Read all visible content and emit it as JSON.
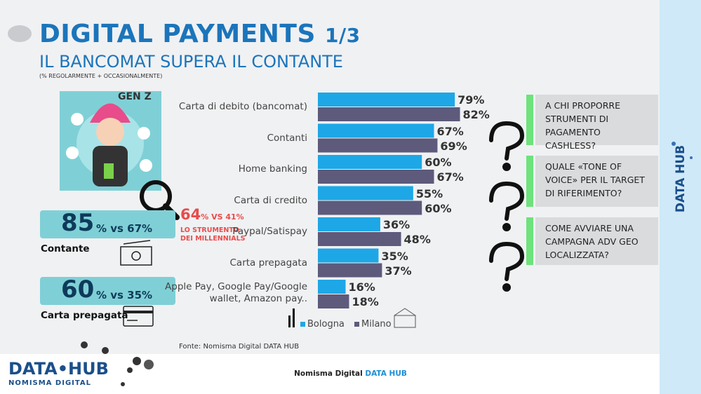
{
  "header": {
    "title": "DIGITAL PAYMENTS",
    "part": "1/3",
    "subtitle": "IL BANCOMAT SUPERA IL CONTANTE",
    "note": "(% REGOLARMENTE + OCCASIONALMENTE)"
  },
  "illustration": {
    "label": "GEN Z"
  },
  "millennials": {
    "main": "64",
    "rest": "% VS 41%",
    "caption": [
      "LO STRUMENTO",
      "DEI MILLENNIALS"
    ]
  },
  "stats": [
    {
      "main": "85",
      "rest": "% vs 67%",
      "label": "Contante"
    },
    {
      "main": "60",
      "rest": "% vs 35%",
      "label": "Carta prepagata"
    }
  ],
  "chart_data": {
    "type": "bar",
    "orientation": "horizontal",
    "categories": [
      "Carta di debito (bancomat)",
      "Contanti",
      "Home banking",
      "Carta di credito",
      "Paypal/Satispay",
      "Carta prepagata",
      "Apple Pay, Google Pay/Google wallet, Amazon pay.."
    ],
    "series": [
      {
        "name": "Bologna",
        "color": "#1ea7e6",
        "values": [
          79,
          67,
          60,
          55,
          36,
          35,
          16
        ],
        "value_labels": [
          "79%",
          "67%",
          "60%",
          "55%",
          "36%",
          "35%",
          "16%"
        ]
      },
      {
        "name": "Milano",
        "color": "#5d5a7b",
        "values": [
          82,
          69,
          67,
          60,
          48,
          37,
          18
        ],
        "value_labels": [
          "82%",
          "69%",
          "67%",
          "60%",
          "48%",
          "37%",
          "18%"
        ]
      }
    ],
    "source": "Fonte: Nomisma Digital DATA HUB"
  },
  "questions": [
    "A CHI PROPORRE STRUMENTI DI PAGAMENTO CASHLESS?",
    "QUALE «TONE OF VOICE» PER IL TARGET DI RIFERIMENTO?",
    "COME AVVIARE UNA CAMPAGNA ADV GEO LOCALIZZATA?"
  ],
  "footer": {
    "text": "Nomisma Digital",
    "brand": "DATA HUB"
  },
  "logo": {
    "main": "DATA•HUB",
    "sub": "NOMISMA DIGITAL"
  }
}
